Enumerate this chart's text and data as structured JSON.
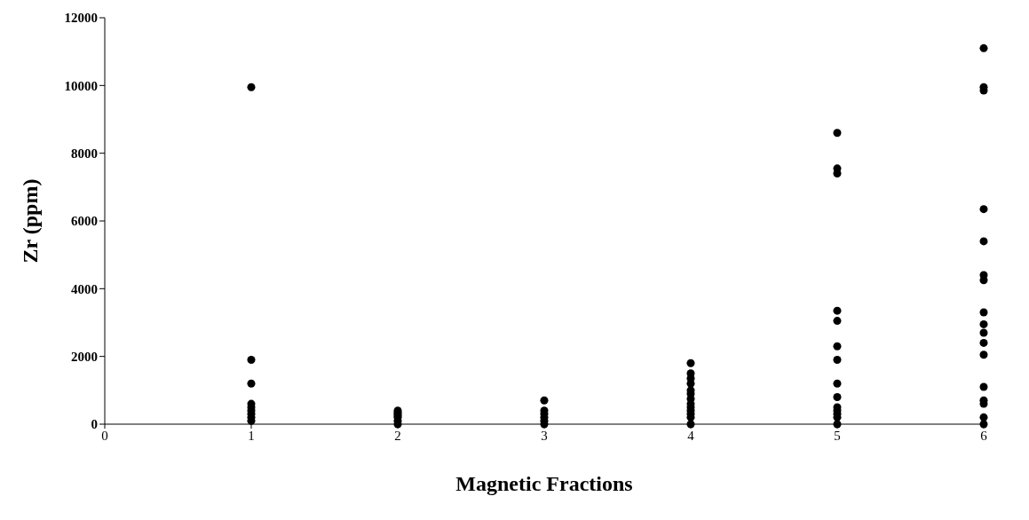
{
  "chart_data": {
    "type": "scatter",
    "xlabel": "Magnetic Fractions",
    "ylabel": "Zr (ppm)",
    "x": [
      1,
      1,
      1,
      1,
      1,
      1,
      1,
      1,
      1,
      2,
      2,
      2,
      2,
      2,
      2,
      2,
      3,
      3,
      3,
      3,
      3,
      3,
      4,
      4,
      4,
      4,
      4,
      4,
      4,
      4,
      4,
      4,
      4,
      4,
      4,
      5,
      5,
      5,
      5,
      5,
      5,
      5,
      5,
      5,
      5,
      5,
      5,
      5,
      5,
      6,
      6,
      6,
      6,
      6,
      6,
      6,
      6,
      6,
      6,
      6,
      6,
      6,
      6,
      6,
      6,
      6
    ],
    "series": [
      {
        "color": "#000000",
        "values": [
          9950,
          1900,
          1200,
          600,
          500,
          400,
          300,
          200,
          100,
          400,
          350,
          300,
          250,
          200,
          100,
          0,
          700,
          400,
          300,
          200,
          100,
          0,
          1800,
          1500,
          1350,
          1200,
          1000,
          900,
          750,
          600,
          500,
          400,
          300,
          200,
          0,
          8600,
          7550,
          7400,
          3350,
          3050,
          2300,
          1900,
          1200,
          800,
          500,
          400,
          300,
          200,
          0,
          11100,
          9950,
          9850,
          6350,
          5400,
          4400,
          4250,
          3300,
          2950,
          2700,
          2400,
          2050,
          1100,
          700,
          600,
          200,
          0
        ]
      }
    ],
    "xlim": [
      0,
      6
    ],
    "xticks": [
      0,
      1,
      2,
      3,
      4,
      5,
      6
    ],
    "ylim": [
      0,
      12000
    ],
    "yticks": [
      0,
      2000,
      4000,
      6000,
      8000,
      10000,
      12000
    ],
    "grid": false,
    "legend": false,
    "marker": "circle"
  }
}
